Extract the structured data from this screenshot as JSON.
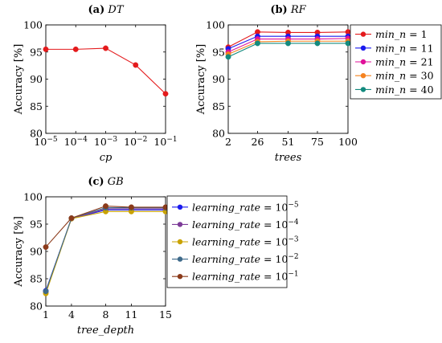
{
  "chart_data": [
    {
      "type": "line",
      "panel": "a",
      "title_prefix": "(a)",
      "title_name": "DT",
      "xlabel": "cp",
      "ylabel": "Accuracy [%]",
      "x_scale": "log",
      "xlim": [
        1e-05,
        0.1
      ],
      "ylim": [
        80,
        100
      ],
      "x_ticks": [
        {
          "v": 1e-05,
          "base": "10",
          "exp": "−5"
        },
        {
          "v": 0.0001,
          "base": "10",
          "exp": "−4"
        },
        {
          "v": 0.001,
          "base": "10",
          "exp": "−3"
        },
        {
          "v": 0.01,
          "base": "10",
          "exp": "−2"
        },
        {
          "v": 0.1,
          "base": "10",
          "exp": "−1"
        }
      ],
      "y_ticks": [
        80,
        85,
        90,
        95,
        100
      ],
      "series": [
        {
          "color": "#e41a1c",
          "x": [
            1e-05,
            0.0001,
            0.001,
            0.01,
            0.1
          ],
          "values": [
            95.5,
            95.5,
            95.7,
            92.6,
            87.3
          ]
        }
      ]
    },
    {
      "type": "line",
      "panel": "b",
      "title_prefix": "(b)",
      "title_name": "RF",
      "xlabel": "trees",
      "ylabel": "Accuracy [%]",
      "x_scale": "linear",
      "xlim": [
        2,
        100
      ],
      "ylim": [
        80,
        100
      ],
      "x_ticks": [
        {
          "v": 2,
          "label": "2"
        },
        {
          "v": 26,
          "label": "26"
        },
        {
          "v": 51,
          "label": "51"
        },
        {
          "v": 75,
          "label": "75"
        },
        {
          "v": 100,
          "label": "100"
        }
      ],
      "y_ticks": [
        80,
        85,
        90,
        95,
        100
      ],
      "legend_position": "right",
      "series": [
        {
          "name_var": "min_n",
          "name_op": " = ",
          "name_val": "1",
          "color": "#e41a1c",
          "x": [
            2,
            26,
            51,
            75,
            100
          ],
          "values": [
            95.9,
            98.7,
            98.6,
            98.6,
            98.7
          ]
        },
        {
          "name_var": "min_n",
          "name_op": " = ",
          "name_val": "11",
          "color": "#1a1aee",
          "x": [
            2,
            26,
            51,
            75,
            100
          ],
          "values": [
            95.6,
            97.9,
            97.9,
            97.9,
            97.9
          ]
        },
        {
          "name_var": "min_n",
          "name_op": " = ",
          "name_val": "21",
          "color": "#e0119a",
          "x": [
            2,
            26,
            51,
            75,
            100
          ],
          "values": [
            95.0,
            97.4,
            97.4,
            97.4,
            97.5
          ]
        },
        {
          "name_var": "min_n",
          "name_op": " = ",
          "name_val": "30",
          "color": "#f5821f",
          "x": [
            2,
            26,
            51,
            75,
            100
          ],
          "values": [
            94.6,
            96.9,
            97.0,
            97.0,
            97.0
          ]
        },
        {
          "name_var": "min_n",
          "name_op": " = ",
          "name_val": "40",
          "color": "#138a7e",
          "x": [
            2,
            26,
            51,
            75,
            100
          ],
          "values": [
            94.1,
            96.6,
            96.6,
            96.6,
            96.6
          ]
        }
      ]
    },
    {
      "type": "line",
      "panel": "c",
      "title_prefix": "(c)",
      "title_name": "GB",
      "xlabel": "tree_depth",
      "ylabel": "Accuracy [%]",
      "x_scale": "linear",
      "xlim": [
        1,
        15
      ],
      "ylim": [
        80,
        100
      ],
      "x_ticks": [
        {
          "v": 1,
          "label": "1"
        },
        {
          "v": 4,
          "label": "4"
        },
        {
          "v": 8,
          "label": "8"
        },
        {
          "v": 11,
          "label": "11"
        },
        {
          "v": 15,
          "label": "15"
        }
      ],
      "y_ticks": [
        80,
        85,
        90,
        95,
        100
      ],
      "legend_position": "right",
      "series": [
        {
          "name_var": "learning_rate",
          "name_op": " = 10",
          "name_exp": "−5",
          "color": "#1a1aee",
          "x": [
            1,
            4,
            8,
            11,
            15
          ],
          "values": [
            82.8,
            96.0,
            97.6,
            97.6,
            97.6
          ]
        },
        {
          "name_var": "learning_rate",
          "name_op": " = 10",
          "name_exp": "−4",
          "color": "#7d3c98",
          "x": [
            1,
            4,
            8,
            11,
            15
          ],
          "values": [
            82.6,
            96.0,
            97.8,
            97.8,
            97.8
          ]
        },
        {
          "name_var": "learning_rate",
          "name_op": " = 10",
          "name_exp": "−3",
          "color": "#c9a200",
          "x": [
            1,
            4,
            8,
            11,
            15
          ],
          "values": [
            82.3,
            96.0,
            97.3,
            97.3,
            97.3
          ]
        },
        {
          "name_var": "learning_rate",
          "name_op": " = 10",
          "name_exp": "−2",
          "color": "#3e6a8a",
          "x": [
            1,
            4,
            8,
            11,
            15
          ],
          "values": [
            82.7,
            96.1,
            98.0,
            98.0,
            98.0
          ]
        },
        {
          "name_var": "learning_rate",
          "name_op": " = 10",
          "name_exp": "−1",
          "color": "#8b3a1a",
          "x": [
            1,
            4,
            8,
            11,
            15
          ],
          "values": [
            90.8,
            96.1,
            98.3,
            98.1,
            98.1
          ]
        }
      ]
    }
  ]
}
